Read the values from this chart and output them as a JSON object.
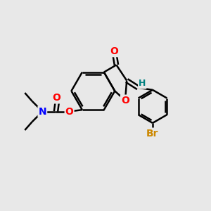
{
  "background_color": "#e8e8e8",
  "bond_color": "#000000",
  "bond_width": 1.8,
  "atom_colors": {
    "O": "#ff0000",
    "N": "#0000ff",
    "Br": "#cc8800",
    "H": "#008080",
    "C": "#000000"
  },
  "font_size": 10,
  "fig_size": [
    3.0,
    3.0
  ],
  "dpi": 100
}
